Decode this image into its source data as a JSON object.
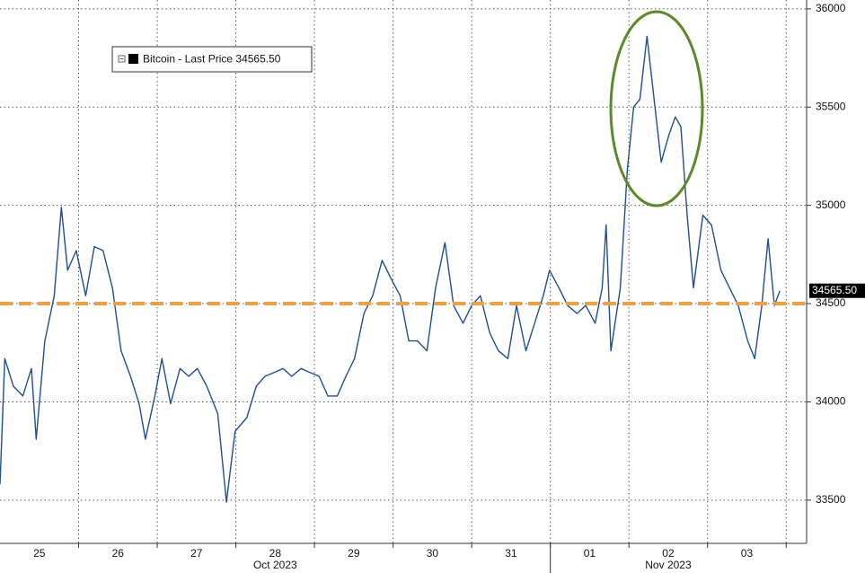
{
  "chart_data": {
    "type": "line",
    "series": [
      {
        "name": "Bitcoin - Last Price",
        "color": "#1d4f95",
        "x": [
          0,
          0.06,
          0.17,
          0.29,
          0.4,
          0.46,
          0.57,
          0.69,
          0.78,
          0.86,
          0.97,
          1.09,
          1.2,
          1.31,
          1.43,
          1.54,
          1.66,
          1.77,
          1.85,
          1.97,
          2.06,
          2.17,
          2.29,
          2.4,
          2.51,
          2.63,
          2.77,
          2.88,
          2.99,
          3.14,
          3.26,
          3.37,
          3.49,
          3.6,
          3.71,
          3.83,
          3.94,
          4.06,
          4.17,
          4.29,
          4.4,
          4.51,
          4.63,
          4.74,
          4.86,
          4.97,
          5.09,
          5.2,
          5.31,
          5.43,
          5.54,
          5.66,
          5.77,
          5.89,
          6,
          6.11,
          6.23,
          6.34,
          6.46,
          6.57,
          6.69,
          6.8,
          6.91,
          6.99,
          7.11,
          7.22,
          7.34,
          7.45,
          7.57,
          7.66,
          7.71,
          7.77,
          7.89,
          7.98,
          8.06,
          8.14,
          8.23,
          8.32,
          8.41,
          8.51,
          8.59,
          8.66,
          8.74,
          8.82,
          8.94,
          9.05,
          9.17,
          9.28,
          9.39,
          9.51,
          9.6,
          9.69,
          9.77,
          9.85,
          9.92
        ],
        "values": [
          33580,
          34220,
          34080,
          34030,
          34170,
          33810,
          34310,
          34540,
          34990,
          34670,
          34770,
          34540,
          34790,
          34770,
          34580,
          34260,
          34130,
          33990,
          33810,
          34030,
          34220,
          33990,
          34170,
          34130,
          34170,
          34080,
          33940,
          33490,
          33850,
          33920,
          34080,
          34130,
          34150,
          34170,
          34130,
          34170,
          34150,
          34130,
          34030,
          34030,
          34130,
          34220,
          34450,
          34540,
          34720,
          34630,
          34540,
          34310,
          34310,
          34260,
          34580,
          34810,
          34490,
          34400,
          34490,
          34540,
          34350,
          34260,
          34220,
          34490,
          34260,
          34400,
          34540,
          34670,
          34580,
          34490,
          34450,
          34490,
          34400,
          34580,
          34900,
          34260,
          34580,
          35180,
          35500,
          35540,
          35860,
          35540,
          35220,
          35360,
          35450,
          35400,
          34950,
          34580,
          34950,
          34900,
          34670,
          34580,
          34490,
          34310,
          34220,
          34490,
          34830,
          34490,
          34565.5
        ]
      }
    ],
    "last_price": {
      "value": 34565.5,
      "label": "34565.50"
    },
    "reference_line": {
      "value": 34500,
      "color": "#f0a03c"
    },
    "xlim": [
      0,
      10.26
    ],
    "xticks": [
      {
        "value": 0.5,
        "label": "25"
      },
      {
        "value": 1.5,
        "label": "26"
      },
      {
        "value": 2.5,
        "label": "27"
      },
      {
        "value": 3.5,
        "label": "28"
      },
      {
        "value": 4.5,
        "label": "29"
      },
      {
        "value": 5.5,
        "label": "30"
      },
      {
        "value": 6.5,
        "label": "31"
      },
      {
        "value": 7.5,
        "label": "01"
      },
      {
        "value": 8.5,
        "label": "02"
      },
      {
        "value": 9.5,
        "label": "03"
      }
    ],
    "month_labels": [
      {
        "value": 3.5,
        "label": "Oct 2023"
      },
      {
        "value": 8.5,
        "label": "Nov 2023"
      }
    ],
    "month_break": 7,
    "ylim": [
      33280,
      36045
    ],
    "yticks": [
      33500,
      34000,
      34500,
      35000,
      35500,
      36000
    ],
    "grid": true
  }
}
